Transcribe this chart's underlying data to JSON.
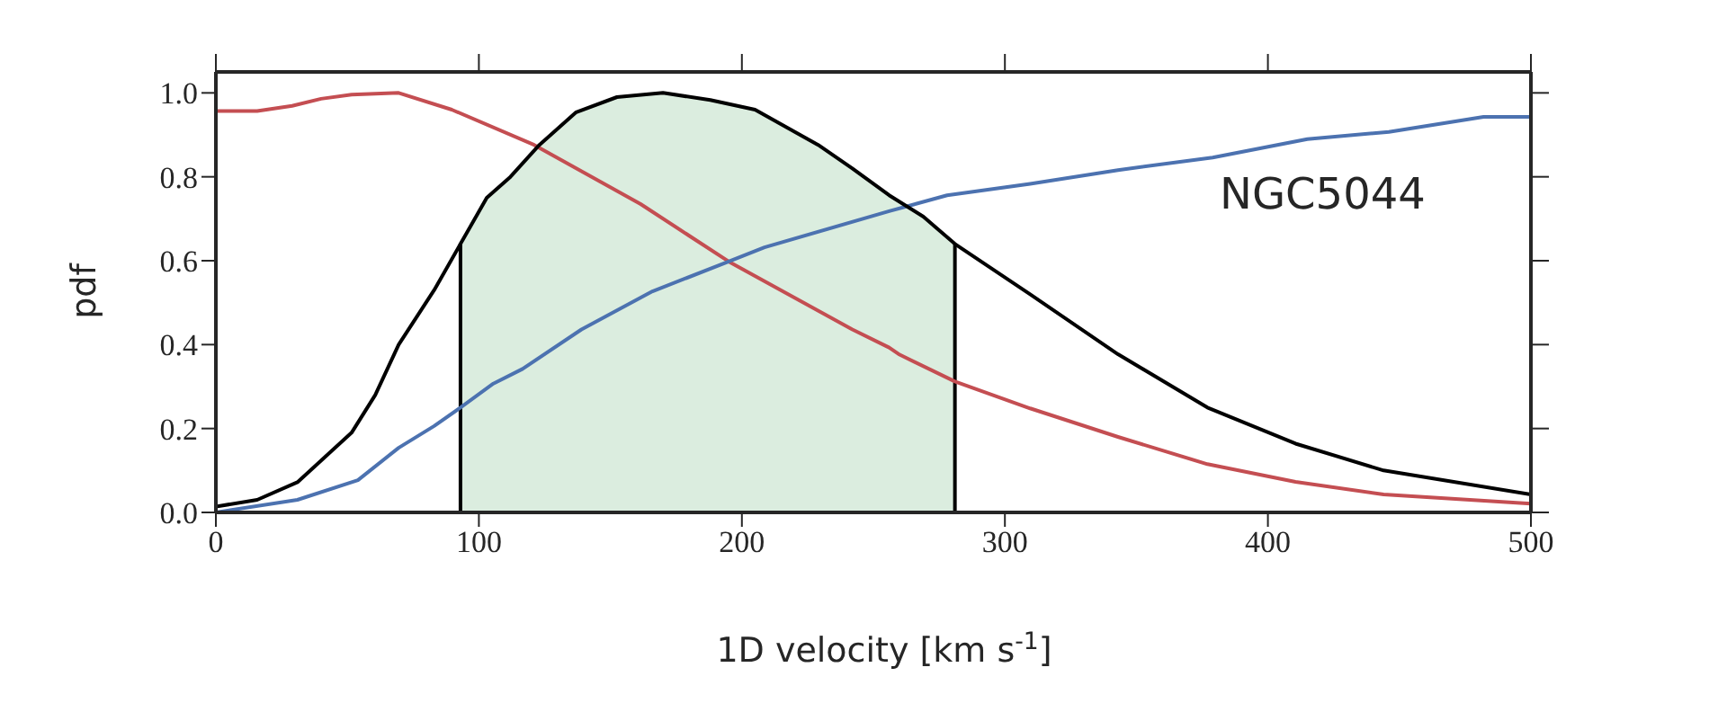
{
  "chart_data": {
    "type": "line",
    "xlabel": "1D velocity [km s$^{-1}$]",
    "ylabel": "pdf",
    "annotations": [
      "NGC5044"
    ],
    "xlim": [
      0,
      500
    ],
    "xticks": [
      0,
      100,
      200,
      300,
      400,
      500
    ],
    "ylim": [
      0,
      1.05
    ],
    "yticks": [
      {
        "value": 0,
        "label": "0.0"
      },
      {
        "value": 0.2,
        "label": "0.2"
      },
      {
        "value": 0.4,
        "label": "0.4"
      },
      {
        "value": 0.6,
        "label": "0.6"
      },
      {
        "value": 0.8,
        "label": "0.8"
      },
      {
        "value": 1,
        "label": "1.0"
      }
    ],
    "marker": "none",
    "line_style": "solid",
    "series": [
      {
        "type": "area",
        "color": "#dbeddf",
        "x": [
          93,
          103,
          112,
          123,
          137,
          152.5,
          170,
          188,
          205,
          229,
          242,
          256,
          269,
          281
        ],
        "values": [
          0.64,
          0.75,
          0.8,
          0.876,
          0.954,
          0.99,
          1.0,
          0.983,
          0.96,
          0.876,
          0.82,
          0.756,
          0.705,
          0.64
        ]
      },
      {
        "type": "line",
        "color": "#000000",
        "x": [
          93,
          93
        ],
        "values": [
          0,
          0.64
        ]
      },
      {
        "type": "line",
        "color": "#000000",
        "x": [
          281,
          281
        ],
        "values": [
          0,
          0.64
        ]
      },
      {
        "color": "#c44e52",
        "x": [
          0,
          15.7,
          29,
          40,
          51.6,
          69.5,
          89.7,
          121,
          161.5,
          195,
          242,
          256,
          260,
          281,
          309.6,
          343,
          377,
          410.5,
          444,
          500
        ],
        "values": [
          0.957,
          0.957,
          0.969,
          0.986,
          0.996,
          1.0,
          0.96,
          0.876,
          0.735,
          0.598,
          0.436,
          0.393,
          0.376,
          0.312,
          0.248,
          0.18,
          0.115,
          0.073,
          0.043,
          0.021
        ]
      },
      {
        "color": "#4c72b0",
        "x": [
          0,
          31,
          54,
          69.5,
          83,
          93,
          105.5,
          116.6,
          139,
          166,
          195,
          208.6,
          256,
          278,
          309.6,
          343,
          379,
          415,
          446,
          482,
          500
        ],
        "values": [
          0.0,
          0.03,
          0.077,
          0.154,
          0.206,
          0.25,
          0.307,
          0.342,
          0.436,
          0.527,
          0.598,
          0.632,
          0.718,
          0.756,
          0.783,
          0.816,
          0.846,
          0.89,
          0.907,
          0.943,
          0.943
        ]
      },
      {
        "color": "#000000",
        "x": [
          0,
          15.7,
          31,
          51.6,
          60.6,
          69.5,
          83,
          93,
          103,
          112,
          123,
          137,
          152.5,
          170,
          188,
          205,
          229,
          242,
          256,
          269,
          281,
          309.6,
          343,
          377,
          410.5,
          444,
          500
        ],
        "values": [
          0.014,
          0.03,
          0.072,
          0.19,
          0.28,
          0.4,
          0.53,
          0.64,
          0.75,
          0.8,
          0.876,
          0.954,
          0.99,
          1.0,
          0.983,
          0.96,
          0.876,
          0.82,
          0.756,
          0.705,
          0.64,
          0.52,
          0.377,
          0.25,
          0.164,
          0.1,
          0.043
        ]
      }
    ]
  }
}
